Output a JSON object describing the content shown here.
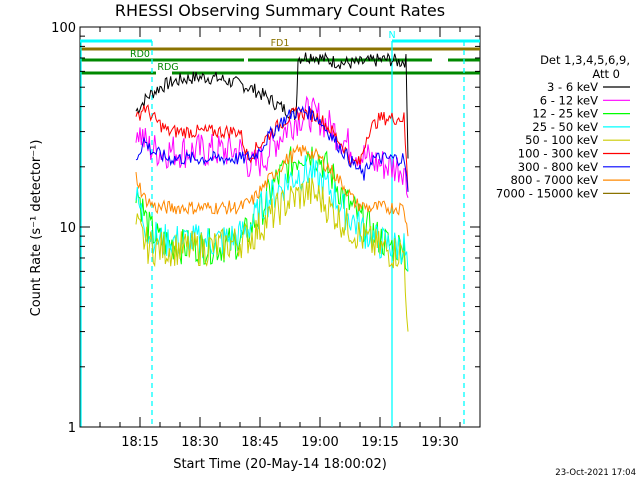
{
  "chart_data": {
    "type": "line",
    "title": "RHESSI Observing Summary Count Rates",
    "xlabel": "Start Time (20-May-14 18:00:02)",
    "ylabel": "Count Rate (s⁻¹ detector⁻¹)",
    "y_scale": "log",
    "ylim": [
      1,
      100
    ],
    "y_ticks": [
      {
        "v": 1,
        "label": "1"
      },
      {
        "v": 10,
        "label": "10"
      },
      {
        "v": 100,
        "label": "100"
      }
    ],
    "xlim_min": [
      0,
      100
    ],
    "x_ticks": [
      {
        "v": 15,
        "label": "18:15"
      },
      {
        "v": 30,
        "label": "18:30"
      },
      {
        "v": 45,
        "label": "18:45"
      },
      {
        "v": 60,
        "label": "19:00"
      },
      {
        "v": 75,
        "label": "19:15"
      },
      {
        "v": 90,
        "label": "19:30"
      }
    ],
    "legend_header": [
      "Det 1,3,4,5,6,9,",
      "Att 0"
    ],
    "series": [
      {
        "name": "3 - 6 keV",
        "color": "#000000",
        "points": [
          [
            14,
            38
          ],
          [
            17,
            45
          ],
          [
            20,
            50
          ],
          [
            23,
            53
          ],
          [
            26,
            55
          ],
          [
            29,
            56
          ],
          [
            32,
            56
          ],
          [
            35,
            55
          ],
          [
            38,
            53
          ],
          [
            41,
            51
          ],
          [
            44,
            48
          ],
          [
            47,
            44
          ],
          [
            50,
            40
          ],
          [
            53,
            37
          ],
          [
            54,
            36
          ],
          [
            54.5,
            70
          ],
          [
            58,
            72
          ],
          [
            62,
            68
          ],
          [
            66,
            66
          ],
          [
            70,
            66
          ],
          [
            74,
            68
          ],
          [
            77,
            69
          ],
          [
            80,
            67
          ],
          [
            81.5,
            68
          ],
          [
            82,
            22
          ]
        ]
      },
      {
        "name": "6 - 12 keV",
        "color": "#ff00ff",
        "points": [
          [
            14,
            32
          ],
          [
            17,
            25
          ],
          [
            20,
            24
          ],
          [
            25,
            24
          ],
          [
            30,
            24
          ],
          [
            35,
            24
          ],
          [
            40,
            24
          ],
          [
            43,
            20
          ],
          [
            46,
            22
          ],
          [
            49,
            27
          ],
          [
            52,
            32
          ],
          [
            55,
            36
          ],
          [
            57,
            37
          ],
          [
            60,
            35
          ],
          [
            63,
            31
          ],
          [
            66,
            27
          ],
          [
            70,
            23
          ],
          [
            74,
            21
          ],
          [
            78,
            20
          ],
          [
            81,
            20
          ],
          [
            82,
            14
          ]
        ]
      },
      {
        "name": "12 - 25 keV",
        "color": "#00ff00",
        "points": [
          [
            14,
            16
          ],
          [
            17,
            10
          ],
          [
            20,
            8.5
          ],
          [
            25,
            8
          ],
          [
            30,
            8
          ],
          [
            35,
            8
          ],
          [
            40,
            8.5
          ],
          [
            43,
            10
          ],
          [
            46,
            13
          ],
          [
            49,
            17
          ],
          [
            52,
            20
          ],
          [
            55,
            23
          ],
          [
            57,
            24
          ],
          [
            60,
            22
          ],
          [
            63,
            18
          ],
          [
            66,
            14
          ],
          [
            70,
            11
          ],
          [
            74,
            9
          ],
          [
            78,
            8
          ],
          [
            81,
            8
          ],
          [
            82,
            6
          ]
        ]
      },
      {
        "name": "25 - 50 keV",
        "color": "#00ffff",
        "points": [
          [
            14,
            14
          ],
          [
            17,
            9.5
          ],
          [
            20,
            8.5
          ],
          [
            25,
            8.5
          ],
          [
            30,
            8.5
          ],
          [
            35,
            8.5
          ],
          [
            40,
            9
          ],
          [
            43,
            10.5
          ],
          [
            46,
            13
          ],
          [
            49,
            15
          ],
          [
            52,
            17
          ],
          [
            55,
            18.5
          ],
          [
            57,
            19
          ],
          [
            60,
            17
          ],
          [
            63,
            15
          ],
          [
            66,
            12
          ],
          [
            70,
            10
          ],
          [
            74,
            8.5
          ],
          [
            78,
            8
          ],
          [
            81,
            8
          ],
          [
            82,
            6
          ]
        ]
      },
      {
        "name": "50 - 100 keV",
        "color": "#cccc00",
        "points": [
          [
            14,
            10
          ],
          [
            17,
            8
          ],
          [
            20,
            7.8
          ],
          [
            25,
            7.8
          ],
          [
            30,
            7.8
          ],
          [
            35,
            8
          ],
          [
            40,
            8.5
          ],
          [
            43,
            9
          ],
          [
            46,
            10.5
          ],
          [
            49,
            12
          ],
          [
            52,
            13.5
          ],
          [
            55,
            14.5
          ],
          [
            57,
            15
          ],
          [
            60,
            14
          ],
          [
            63,
            12
          ],
          [
            66,
            10.5
          ],
          [
            70,
            9
          ],
          [
            74,
            8
          ],
          [
            78,
            7.5
          ],
          [
            81,
            7.5
          ],
          [
            82,
            3
          ]
        ]
      },
      {
        "name": "100 - 300 keV",
        "color": "#ff0000",
        "points": [
          [
            14,
            34
          ],
          [
            16,
            40
          ],
          [
            19,
            34
          ],
          [
            22,
            30
          ],
          [
            25,
            30
          ],
          [
            30,
            30
          ],
          [
            35,
            30
          ],
          [
            40,
            30
          ],
          [
            42,
            22
          ],
          [
            45,
            26
          ],
          [
            48,
            30
          ],
          [
            51,
            34
          ],
          [
            54,
            37
          ],
          [
            57,
            37
          ],
          [
            60,
            35
          ],
          [
            63,
            30
          ],
          [
            66,
            25
          ],
          [
            68,
            21
          ],
          [
            70,
            21
          ],
          [
            72,
            30
          ],
          [
            75,
            35
          ],
          [
            78,
            35
          ],
          [
            81,
            35
          ],
          [
            82,
            15
          ]
        ]
      },
      {
        "name": "300 - 800 keV",
        "color": "#0000ff",
        "points": [
          [
            14,
            22
          ],
          [
            16,
            27
          ],
          [
            18,
            24
          ],
          [
            22,
            22
          ],
          [
            26,
            22
          ],
          [
            30,
            22
          ],
          [
            34,
            22
          ],
          [
            38,
            22
          ],
          [
            41,
            22
          ],
          [
            44,
            23
          ],
          [
            47,
            28
          ],
          [
            50,
            33
          ],
          [
            53,
            37
          ],
          [
            56,
            38
          ],
          [
            59,
            36
          ],
          [
            62,
            30
          ],
          [
            65,
            25
          ],
          [
            68,
            21
          ],
          [
            71,
            18
          ],
          [
            73,
            22
          ],
          [
            76,
            22
          ],
          [
            79,
            22
          ],
          [
            81,
            22
          ],
          [
            82,
            15
          ]
        ]
      },
      {
        "name": "800 - 7000 keV",
        "color": "#ff8800",
        "points": [
          [
            14,
            18
          ],
          [
            16,
            14
          ],
          [
            19,
            12.5
          ],
          [
            22,
            12.5
          ],
          [
            26,
            12.5
          ],
          [
            30,
            12.5
          ],
          [
            35,
            12.5
          ],
          [
            40,
            12.5
          ],
          [
            43,
            13.5
          ],
          [
            46,
            16
          ],
          [
            49,
            19
          ],
          [
            52,
            22
          ],
          [
            55,
            24
          ],
          [
            57,
            24
          ],
          [
            60,
            22
          ],
          [
            63,
            19
          ],
          [
            66,
            16
          ],
          [
            69,
            13
          ],
          [
            72,
            12.5
          ],
          [
            75,
            12.5
          ],
          [
            78,
            12.5
          ],
          [
            81,
            12.5
          ],
          [
            82,
            9
          ]
        ]
      },
      {
        "name": "7000 - 15000 keV",
        "color": "#8b7300",
        "points": []
      }
    ],
    "attenuator_bars": [
      {
        "label": "N",
        "color": "#00ffff",
        "segments": [
          [
            0,
            18
          ],
          [
            78,
            100
          ]
        ]
      },
      {
        "label": "FD1",
        "color": "#8b7300",
        "segments": [
          [
            0,
            100
          ]
        ]
      },
      {
        "label": "RD0",
        "color": "#008800",
        "segments": [
          [
            0,
            41
          ],
          [
            42,
            88
          ],
          [
            92,
            100
          ]
        ]
      },
      {
        "label": "RDG",
        "color": "#008800",
        "segments": [
          [
            0,
            19
          ],
          [
            23,
            100
          ]
        ]
      }
    ],
    "vertical_markers": [
      {
        "color": "#00ffff",
        "x": 0,
        "style": "solid"
      },
      {
        "color": "#00ffff",
        "x": 18,
        "style": "dashed"
      },
      {
        "color": "#00ffff",
        "x": 78,
        "style": "solid"
      },
      {
        "color": "#00ffff",
        "x": 96,
        "style": "dashed"
      }
    ],
    "grid": false
  },
  "stamp": "23-Oct-2021 17:04"
}
